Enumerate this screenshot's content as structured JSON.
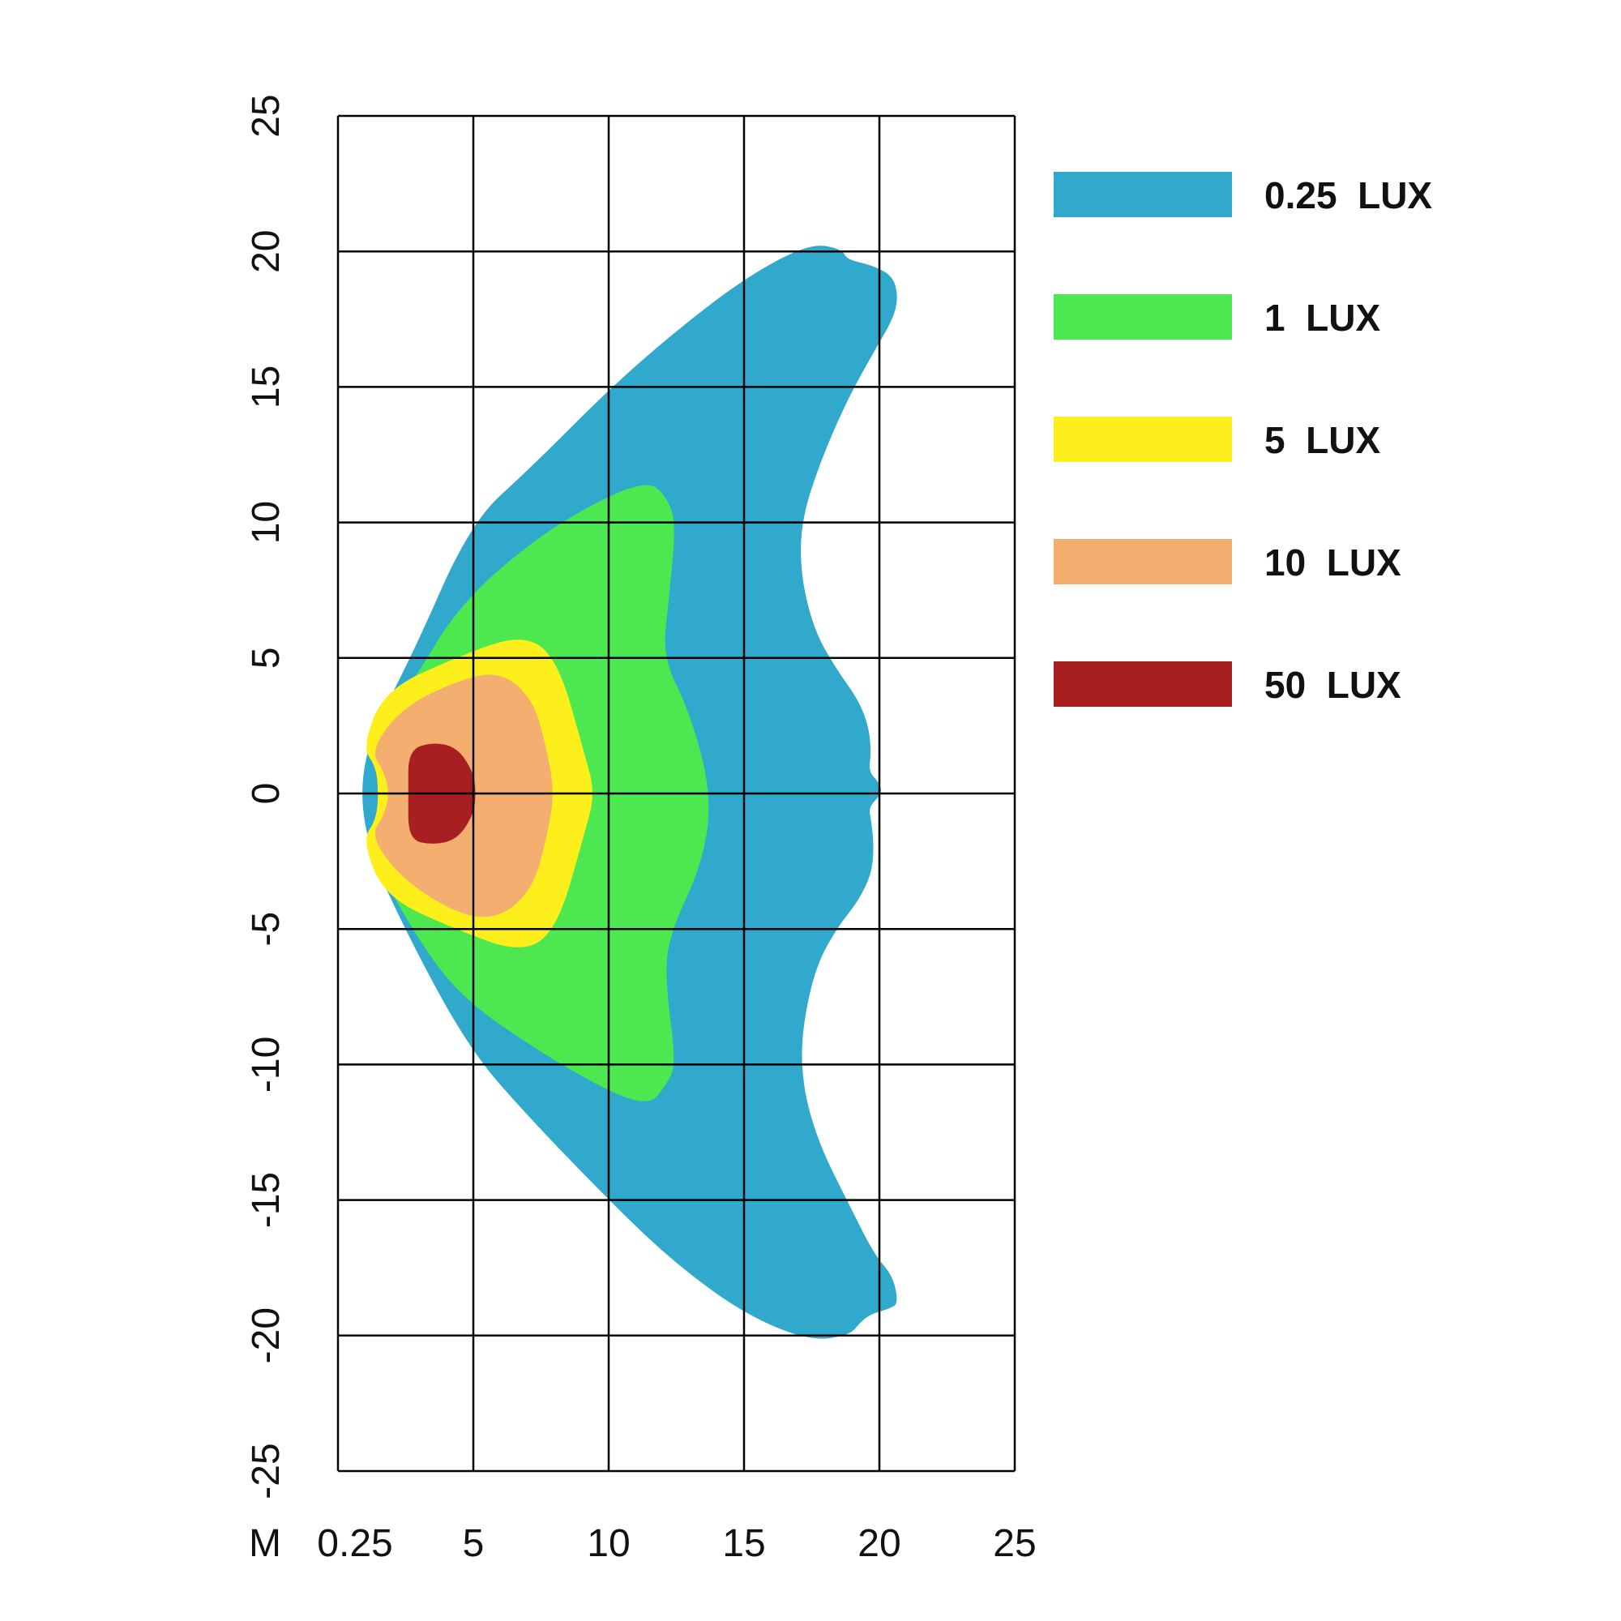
{
  "chart_data": {
    "type": "area",
    "title": "",
    "xlabel": "",
    "ylabel": "",
    "x_unit_label": "M",
    "x_tick_labels": [
      "0.25",
      "5",
      "10",
      "15",
      "20",
      "25"
    ],
    "y_tick_labels": [
      "25",
      "20",
      "15",
      "10",
      "5",
      "0",
      "-5",
      "-10",
      "-15",
      "-20",
      "-25"
    ],
    "xlim": [
      0,
      25
    ],
    "ylim": [
      -25,
      25
    ],
    "grid": true,
    "legend_position": "right",
    "series": [
      {
        "name": "0.25 LUX",
        "label": "0.25  LUX",
        "color": "#31A9CD",
        "points": [
          [
            0.9,
            1.6
          ],
          [
            2.7,
            5
          ],
          [
            4.9,
            10
          ],
          [
            7.1,
            12
          ],
          [
            10,
            14.9
          ],
          [
            12.4,
            17
          ],
          [
            15,
            19
          ],
          [
            17.4,
            20.3
          ],
          [
            18.6,
            20.1
          ],
          [
            18.8,
            19.7
          ],
          [
            19.7,
            19.5
          ],
          [
            20.5,
            19.1
          ],
          [
            20.7,
            18.3
          ],
          [
            20.5,
            17.5
          ],
          [
            19.8,
            16.3
          ],
          [
            18.8,
            14.5
          ],
          [
            17.8,
            12.2
          ],
          [
            17.1,
            10
          ],
          [
            17.1,
            8
          ],
          [
            17.6,
            6
          ],
          [
            18.4,
            4.6
          ],
          [
            19.2,
            3.5
          ],
          [
            19.6,
            2.5
          ],
          [
            19.7,
            1.5
          ],
          [
            19.6,
            0.8
          ],
          [
            20,
            0.4
          ],
          [
            20.1,
            0
          ],
          [
            19.6,
            -0.5
          ],
          [
            19.7,
            -1
          ],
          [
            19.8,
            -2
          ],
          [
            19.7,
            -3
          ],
          [
            19.2,
            -4
          ],
          [
            18.4,
            -5
          ],
          [
            17.6,
            -6.5
          ],
          [
            17.1,
            -9
          ],
          [
            17.2,
            -11
          ],
          [
            17.8,
            -13
          ],
          [
            18.8,
            -15
          ],
          [
            19.8,
            -17
          ],
          [
            20.5,
            -17.8
          ],
          [
            20.7,
            -18.8
          ],
          [
            20.4,
            -19
          ],
          [
            19.7,
            -19.2
          ],
          [
            19.3,
            -19.5
          ],
          [
            18.9,
            -20
          ],
          [
            17.4,
            -20.2
          ],
          [
            15,
            -19.2
          ],
          [
            12.4,
            -17.3
          ],
          [
            10,
            -15
          ],
          [
            7.1,
            -12
          ],
          [
            4.9,
            -9.5
          ],
          [
            2.7,
            -5.5
          ],
          [
            0.9,
            -1.6
          ]
        ]
      },
      {
        "name": "1 LUX",
        "label": "1  LUX",
        "color": "#4DE84F",
        "points": [
          [
            0.9,
            1.6
          ],
          [
            2.7,
            4
          ],
          [
            4.5,
            7
          ],
          [
            7.4,
            9.5
          ],
          [
            10,
            11
          ],
          [
            11.5,
            11.5
          ],
          [
            12.1,
            11
          ],
          [
            12.5,
            10
          ],
          [
            12.2,
            7
          ],
          [
            12,
            5
          ],
          [
            13,
            3
          ],
          [
            13.8,
            0
          ],
          [
            13.5,
            -2.5
          ],
          [
            12.2,
            -5.3
          ],
          [
            12.1,
            -7
          ],
          [
            12.5,
            -10
          ],
          [
            12.1,
            -10.8
          ],
          [
            11.5,
            -11.5
          ],
          [
            10,
            -11
          ],
          [
            7.4,
            -9.5
          ],
          [
            4.5,
            -7.5
          ],
          [
            2.7,
            -5
          ],
          [
            0.9,
            -1.6
          ],
          [
            1.7,
            -1
          ],
          [
            1.8,
            0
          ],
          [
            1.7,
            1
          ]
        ]
      },
      {
        "name": "5 LUX",
        "label": "5  LUX",
        "color": "#FDEF1B",
        "points": [
          [
            0.9,
            1.7
          ],
          [
            1.7,
            3.8
          ],
          [
            4.3,
            5
          ],
          [
            6.8,
            5.9
          ],
          [
            8.1,
            5
          ],
          [
            9.1,
            1.5
          ],
          [
            9.5,
            0
          ],
          [
            9.1,
            -1.5
          ],
          [
            8.1,
            -5
          ],
          [
            6.8,
            -5.9
          ],
          [
            4.3,
            -5
          ],
          [
            1.7,
            -3.8
          ],
          [
            0.9,
            -1.7
          ],
          [
            1.4,
            -1
          ],
          [
            1.5,
            0
          ],
          [
            1.4,
            1
          ]
        ]
      },
      {
        "name": "10 LUX",
        "label": "10  LUX",
        "color": "#F4AE6F",
        "points": [
          [
            1.2,
            1.6
          ],
          [
            2.4,
            3.2
          ],
          [
            4.5,
            4.2
          ],
          [
            6,
            4.5
          ],
          [
            7.2,
            3.5
          ],
          [
            7.7,
            1.7
          ],
          [
            8,
            0
          ],
          [
            7.7,
            -1.7
          ],
          [
            7.2,
            -3.5
          ],
          [
            6,
            -4.6
          ],
          [
            4.5,
            -4.5
          ],
          [
            2.4,
            -3.2
          ],
          [
            1.2,
            -1.6
          ],
          [
            1.7,
            -0.8
          ],
          [
            1.9,
            0
          ],
          [
            1.7,
            0.8
          ]
        ]
      },
      {
        "name": "50 LUX",
        "label": "50  LUX",
        "color": "#A81F22",
        "points": [
          [
            2.6,
            1.6
          ],
          [
            3.5,
            1.9
          ],
          [
            4.4,
            1.7
          ],
          [
            5,
            0.8
          ],
          [
            5.1,
            0
          ],
          [
            5,
            -0.8
          ],
          [
            4.4,
            -1.7
          ],
          [
            3.5,
            -1.9
          ],
          [
            2.6,
            -1.7
          ],
          [
            2.6,
            0
          ]
        ]
      }
    ]
  }
}
